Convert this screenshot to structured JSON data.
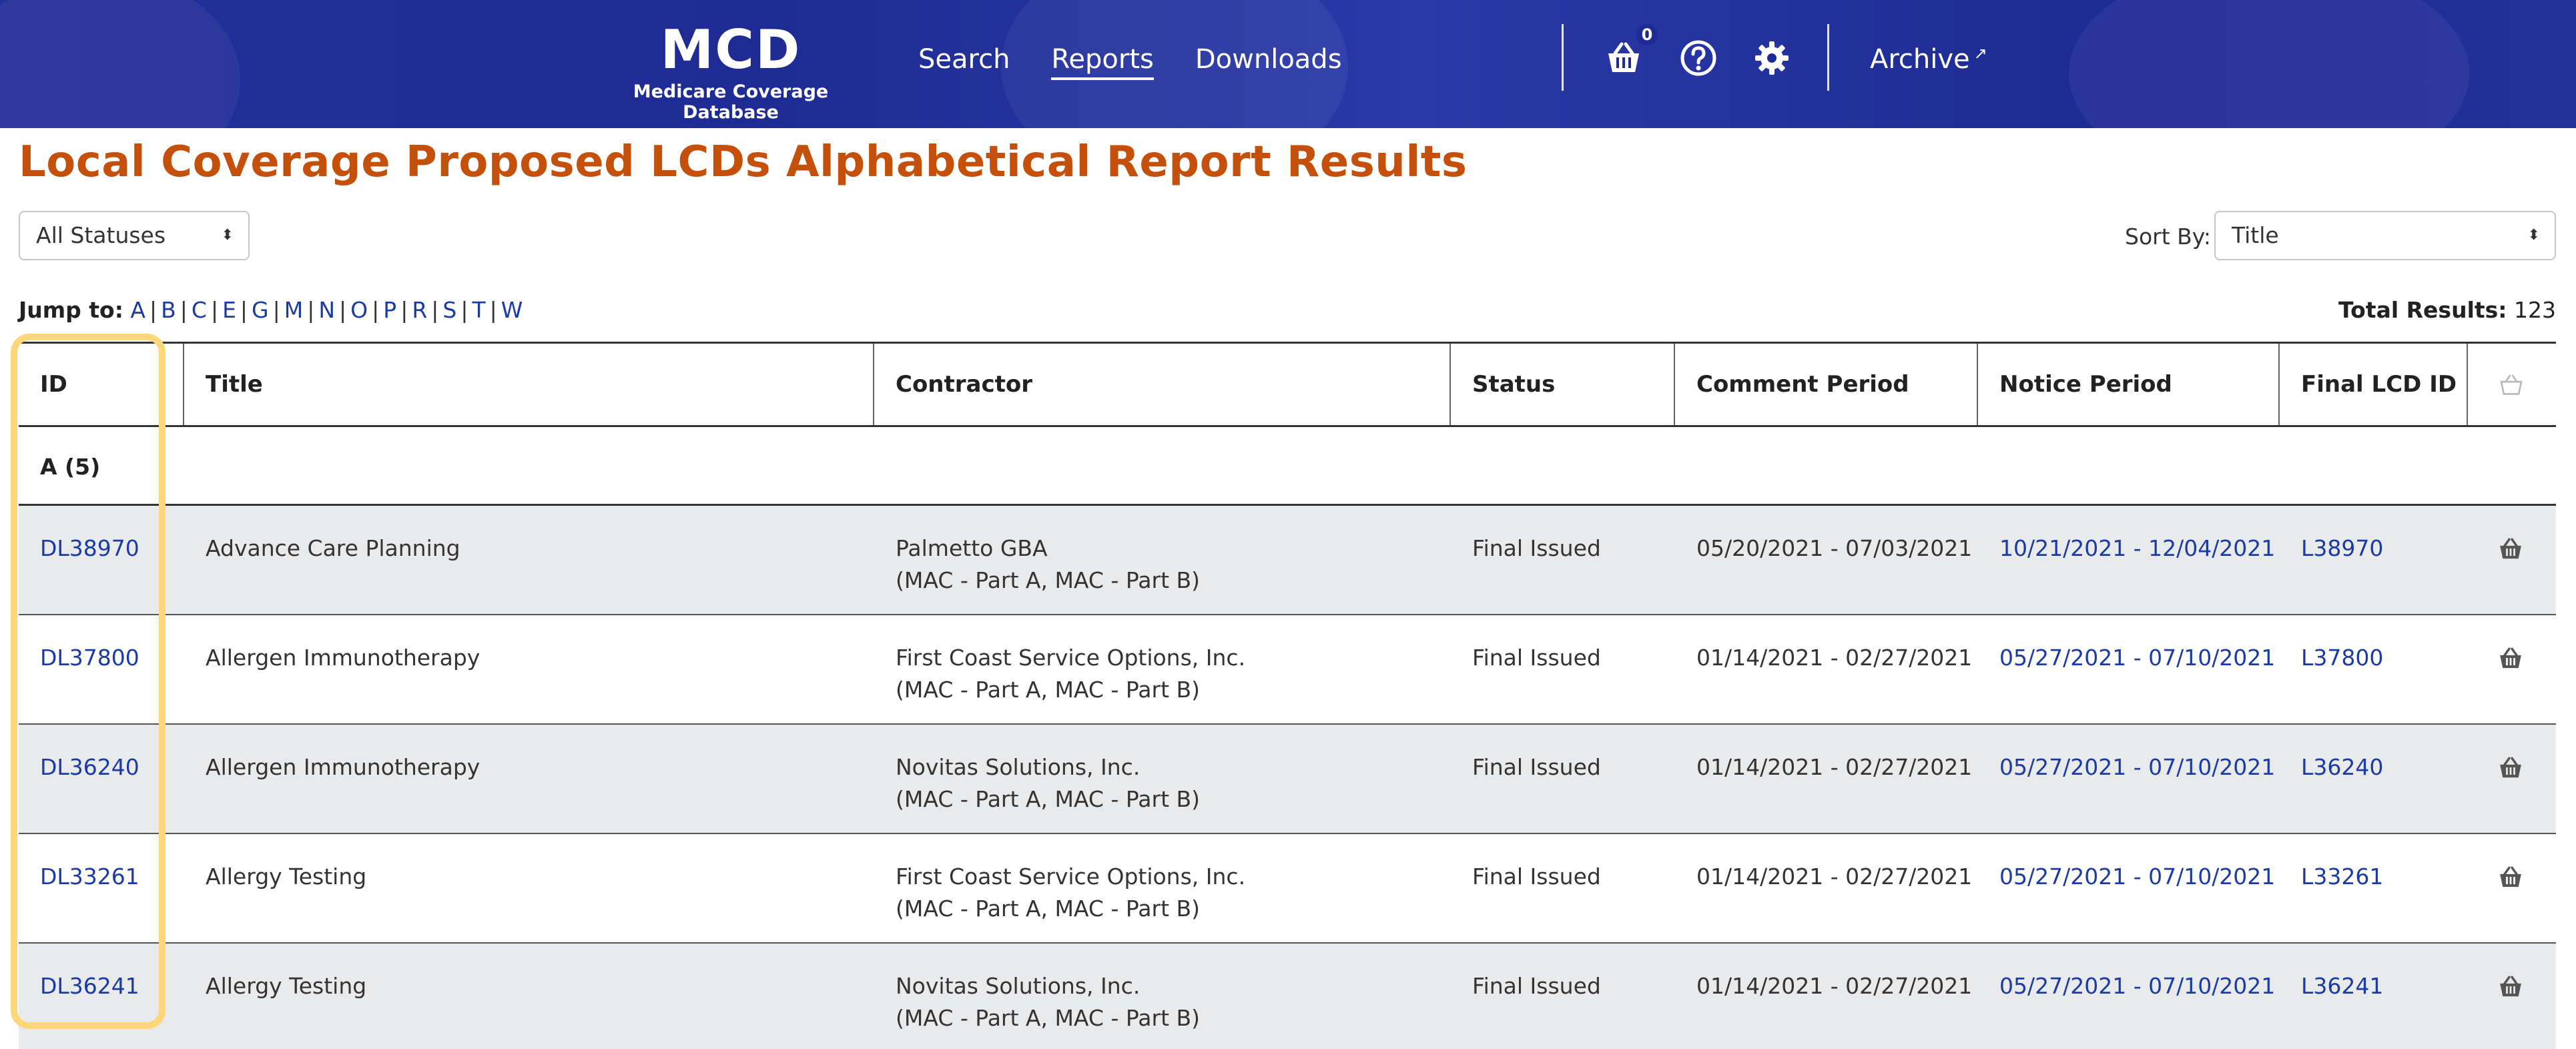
{
  "header": {
    "logo": "MCD",
    "subtitle": "Medicare Coverage Database",
    "nav": [
      {
        "label": "Search"
      },
      {
        "label": "Reports"
      },
      {
        "label": "Downloads"
      }
    ],
    "cart_count": "0",
    "archive_label": "Archive",
    "icons": [
      "basket-icon",
      "help-icon",
      "gear-icon",
      "external-link-icon"
    ]
  },
  "page": {
    "title": "Local Coverage Proposed LCDs Alphabetical Report Results"
  },
  "filters": {
    "status_selected": "All Statuses",
    "sort_label": "Sort By:",
    "sort_selected": "Title"
  },
  "jump": {
    "label": "Jump to:",
    "letters": [
      "A",
      "B",
      "C",
      "E",
      "G",
      "M",
      "N",
      "O",
      "P",
      "R",
      "S",
      "T",
      "W"
    ]
  },
  "total": {
    "label": "Total Results:",
    "value": "123"
  },
  "table": {
    "columns": [
      "ID",
      "Title",
      "Contractor",
      "Status",
      "Comment Period",
      "Notice Period",
      "Final LCD ID"
    ],
    "group": "A (5)",
    "rows": [
      {
        "id": "DL38970",
        "title": "Advance Care Planning",
        "contractor": "Palmetto GBA",
        "contractor_type": "(MAC - Part A, MAC - Part B)",
        "status": "Final Issued",
        "comment": "05/20/2021 - 07/03/2021",
        "notice": "10/21/2021 - 12/04/2021",
        "final_id": "L38970"
      },
      {
        "id": "DL37800",
        "title": "Allergen Immunotherapy",
        "contractor": "First Coast Service Options, Inc.",
        "contractor_type": "(MAC - Part A, MAC - Part B)",
        "status": "Final Issued",
        "comment": "01/14/2021 - 02/27/2021",
        "notice": "05/27/2021 - 07/10/2021",
        "final_id": "L37800"
      },
      {
        "id": "DL36240",
        "title": "Allergen Immunotherapy",
        "contractor": "Novitas Solutions, Inc.",
        "contractor_type": "(MAC - Part A, MAC - Part B)",
        "status": "Final Issued",
        "comment": "01/14/2021 - 02/27/2021",
        "notice": "05/27/2021 - 07/10/2021",
        "final_id": "L36240"
      },
      {
        "id": "DL33261",
        "title": "Allergy Testing",
        "contractor": "First Coast Service Options, Inc.",
        "contractor_type": "(MAC - Part A, MAC - Part B)",
        "status": "Final Issued",
        "comment": "01/14/2021 - 02/27/2021",
        "notice": "05/27/2021 - 07/10/2021",
        "final_id": "L33261"
      },
      {
        "id": "DL36241",
        "title": "Allergy Testing",
        "contractor": "Novitas Solutions, Inc.",
        "contractor_type": "(MAC - Part A, MAC - Part B)",
        "status": "Final Issued",
        "comment": "01/14/2021 - 02/27/2021",
        "notice": "05/27/2021 - 07/10/2021",
        "final_id": "L36241"
      }
    ]
  },
  "colors": {
    "header_bg": "#1e2b94",
    "title": "#c4500b",
    "link": "#1a3aa6",
    "highlight": "#fcd678",
    "row_shade": "#e9eaec"
  }
}
